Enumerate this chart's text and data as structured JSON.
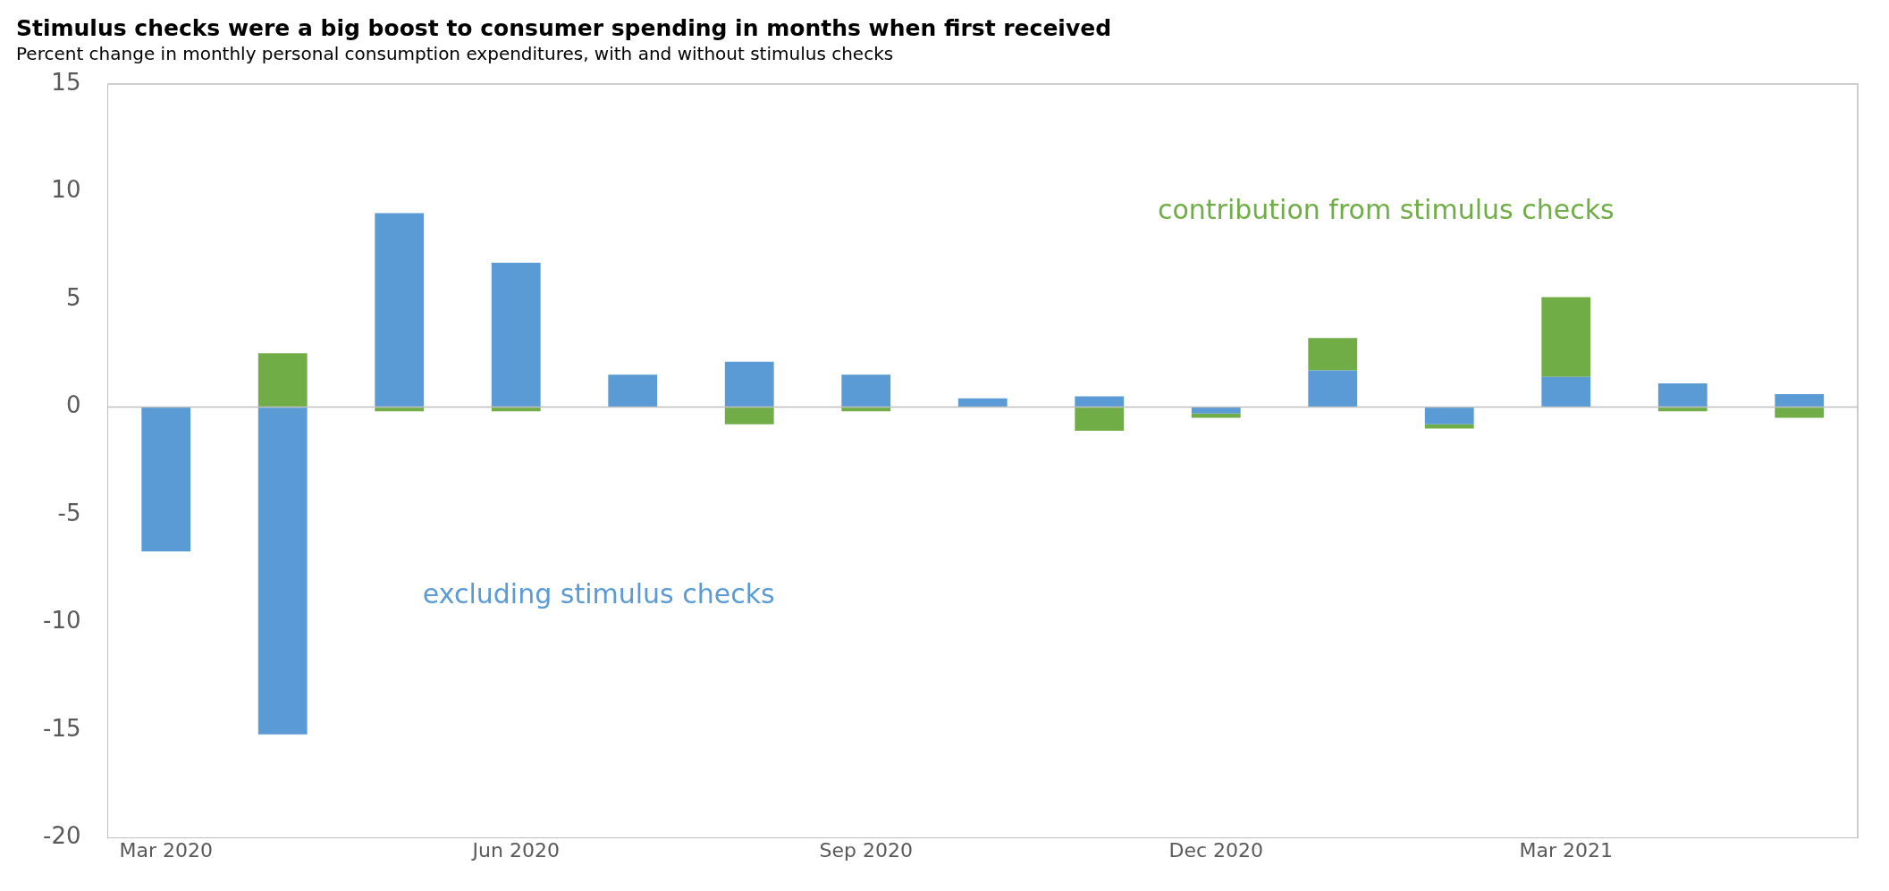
{
  "chart_data": {
    "type": "bar",
    "title": "Stimulus checks were a big boost to consumer spending in months when first received",
    "subtitle": "Percent change in monthly personal consumption expenditures, with and without stimulus checks",
    "categories": [
      "Mar 2020",
      null,
      null,
      "Jun 2020",
      null,
      null,
      "Sep 2020",
      null,
      null,
      "Dec 2020",
      null,
      null,
      "Mar 2021",
      null,
      null
    ],
    "series": [
      {
        "name": "excluding stimulus checks",
        "color": "#5b9bd5",
        "values": [
          -6.7,
          -15.2,
          9.0,
          6.7,
          1.5,
          2.1,
          1.5,
          0.4,
          0.5,
          -0.3,
          1.7,
          -0.8,
          1.4,
          1.1,
          0.6
        ]
      },
      {
        "name": "contribution from stimulus checks",
        "color": "#70ad47",
        "values": [
          0,
          2.5,
          -0.2,
          -0.2,
          0,
          -0.8,
          -0.2,
          0,
          -1.1,
          -0.2,
          1.5,
          -0.2,
          3.7,
          -0.2,
          -0.5
        ]
      }
    ],
    "ref_lines": [
      {
        "axis": "y",
        "value": 0,
        "color": "#bfbfbf"
      }
    ],
    "stacked": true,
    "ylim": [
      -20,
      15
    ],
    "yticks": [
      -20,
      -15,
      -10,
      -5,
      0,
      5,
      10,
      15
    ],
    "grid": false,
    "legend": false
  }
}
